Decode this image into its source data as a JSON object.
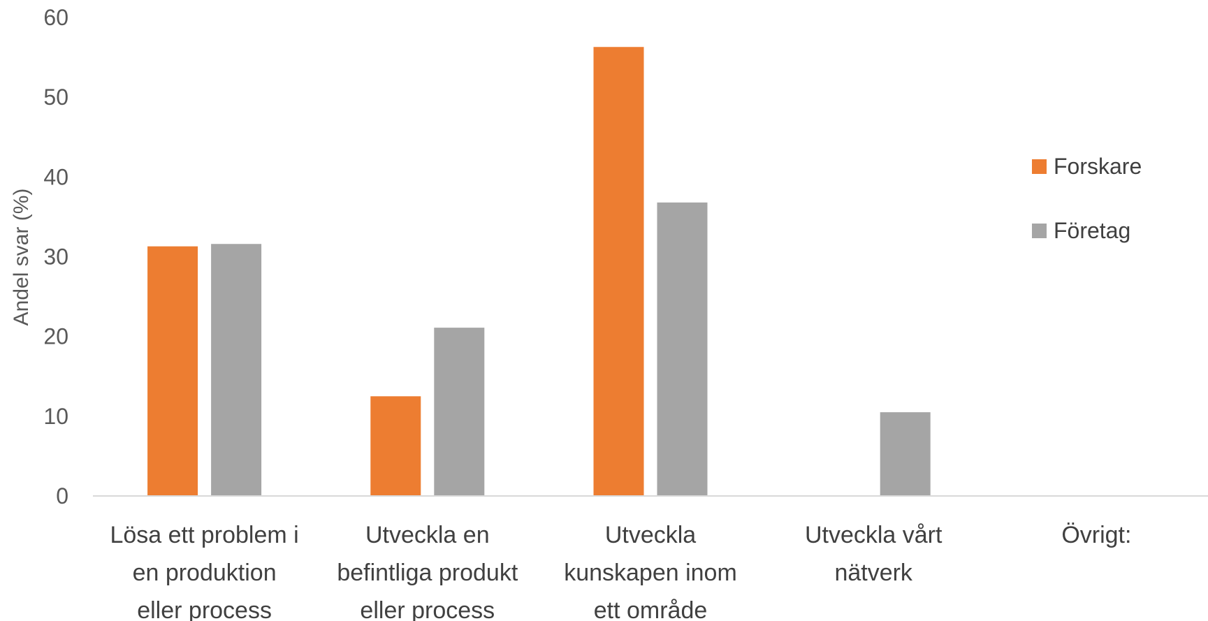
{
  "chart_data": {
    "type": "bar",
    "title": "",
    "xlabel": "",
    "ylabel": "Andel svar (%)",
    "ylim": [
      0,
      60
    ],
    "yticks": [
      0,
      10,
      20,
      30,
      40,
      50,
      60
    ],
    "grid": false,
    "legend_position": "right",
    "categories": [
      [
        "Lösa ett problem i",
        "en produktion",
        "eller process"
      ],
      [
        "Utveckla en",
        "befintliga produkt",
        "eller process"
      ],
      [
        "Utveckla",
        "kunskapen inom",
        "ett område"
      ],
      [
        "Utveckla vårt",
        "nätverk"
      ],
      [
        "Övrigt:"
      ]
    ],
    "series": [
      {
        "name": "Forskare",
        "color": "#ED7D31",
        "values": [
          31.3,
          12.5,
          56.3,
          0,
          0
        ]
      },
      {
        "name": "Företag",
        "color": "#A5A5A5",
        "values": [
          31.6,
          21.1,
          36.8,
          10.5,
          0
        ]
      }
    ]
  }
}
